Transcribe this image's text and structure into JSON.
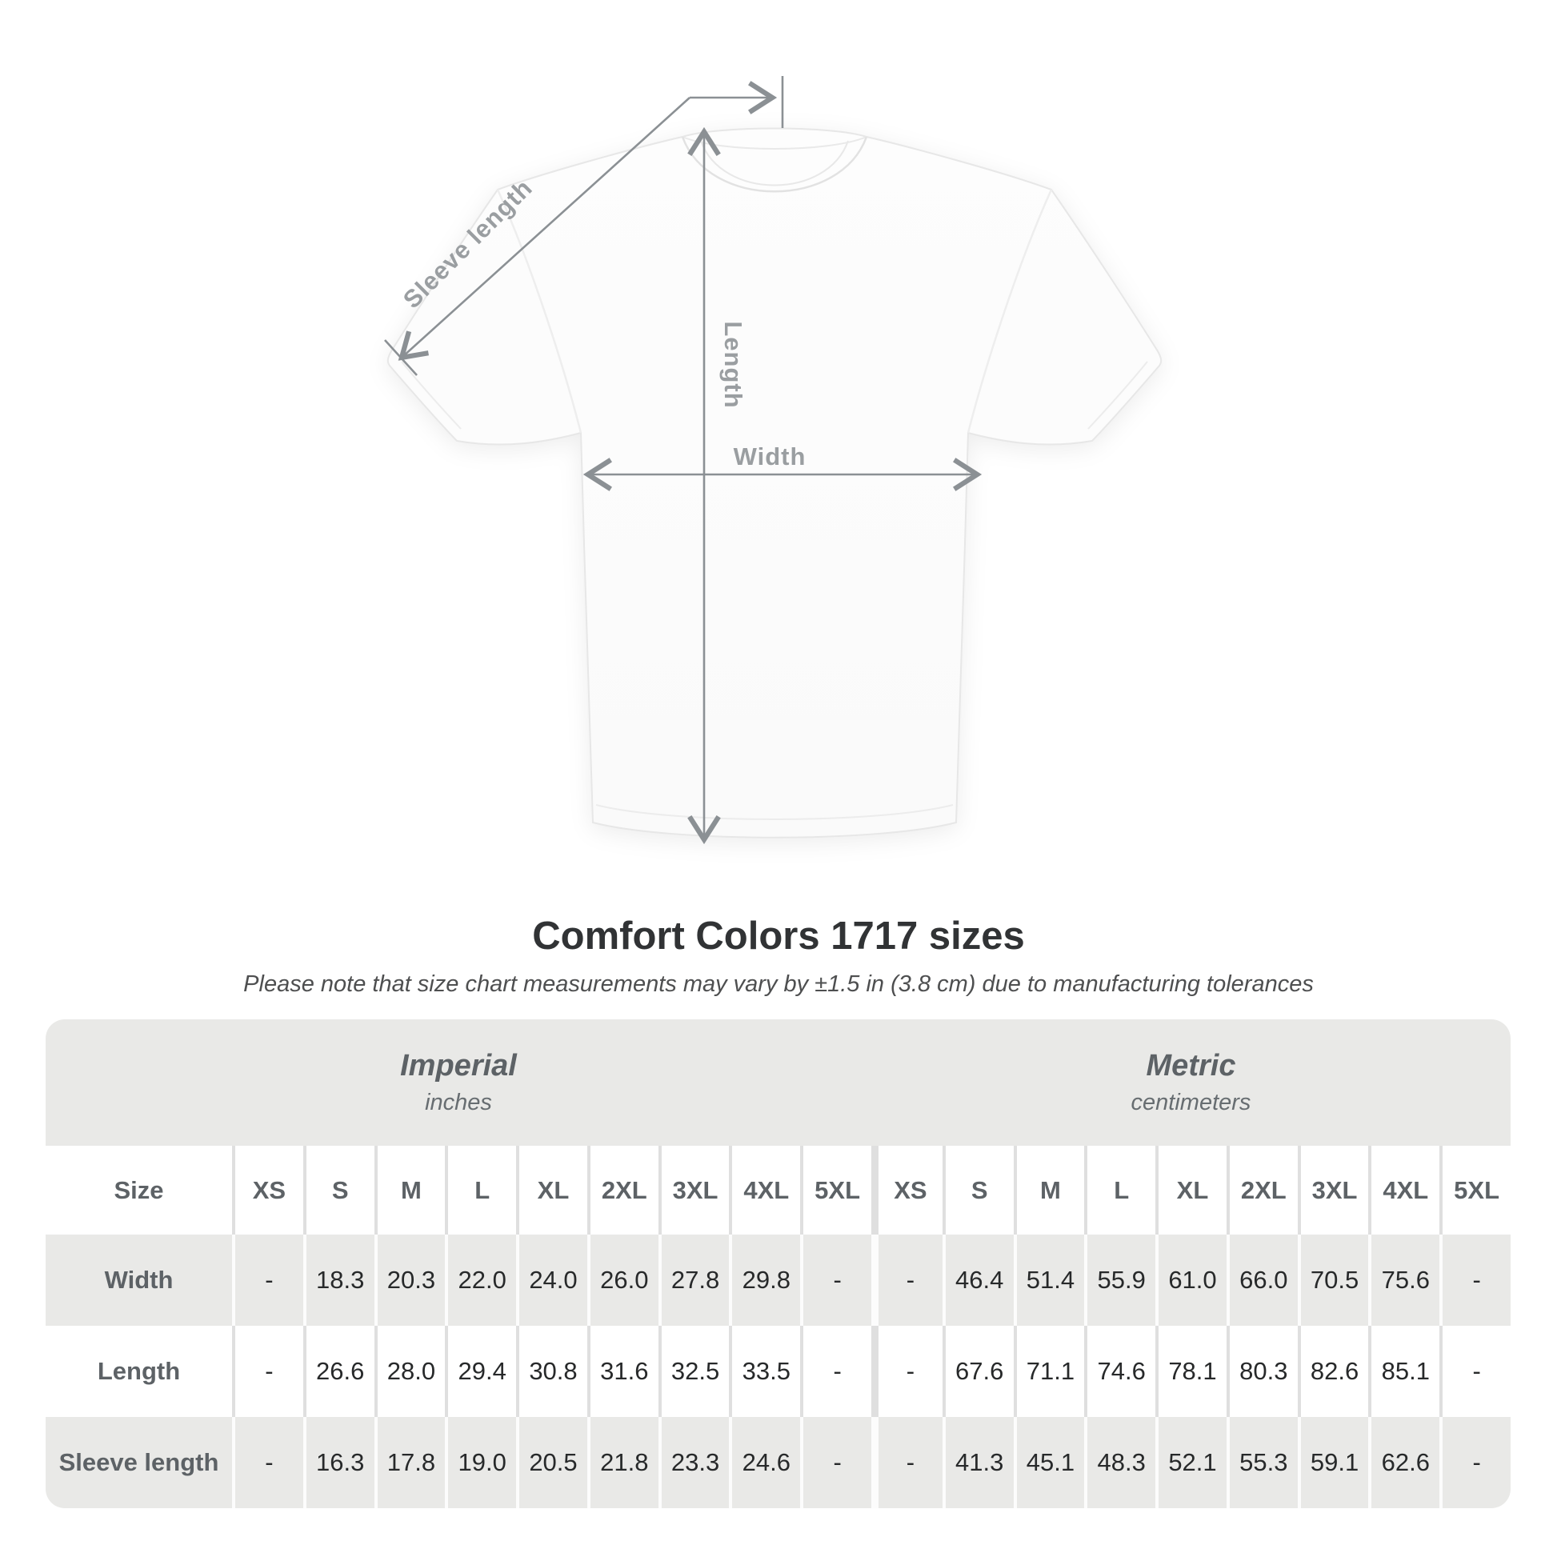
{
  "diagram": {
    "labels": {
      "sleeve_length": "Sleeve length",
      "length": "Length",
      "width": "Width"
    }
  },
  "colors": {
    "table_shade": "#e9e9e7",
    "annotation_line": "#8b9094",
    "annotation_text": "#9a9ea1",
    "title_text": "#313335"
  },
  "chart_data": {
    "type": "table",
    "title": "Comfort Colors 1717 sizes",
    "subtitle": "Please note that size chart measurements may vary by ±1.5 in (3.8 cm) due to manufacturing tolerances",
    "corner_header": "Size",
    "row_labels": [
      "Width",
      "Length",
      "Sleeve length"
    ],
    "sections": [
      {
        "group": "Imperial",
        "unit": "inches",
        "columns": [
          "XS",
          "S",
          "M",
          "L",
          "XL",
          "2XL",
          "3XL",
          "4XL",
          "5XL"
        ],
        "rows": [
          [
            "-",
            "18.3",
            "20.3",
            "22.0",
            "24.0",
            "26.0",
            "27.8",
            "29.8",
            "-"
          ],
          [
            "-",
            "26.6",
            "28.0",
            "29.4",
            "30.8",
            "31.6",
            "32.5",
            "33.5",
            "-"
          ],
          [
            "-",
            "16.3",
            "17.8",
            "19.0",
            "20.5",
            "21.8",
            "23.3",
            "24.6",
            "-"
          ]
        ]
      },
      {
        "group": "Metric",
        "unit": "centimeters",
        "columns": [
          "XS",
          "S",
          "M",
          "L",
          "XL",
          "2XL",
          "3XL",
          "4XL",
          "5XL"
        ],
        "rows": [
          [
            "-",
            "46.4",
            "51.4",
            "55.9",
            "61.0",
            "66.0",
            "70.5",
            "75.6",
            "-"
          ],
          [
            "-",
            "67.6",
            "71.1",
            "74.6",
            "78.1",
            "80.3",
            "82.6",
            "85.1",
            "-"
          ],
          [
            "-",
            "41.3",
            "45.1",
            "48.3",
            "52.1",
            "55.3",
            "59.1",
            "62.6",
            "-"
          ]
        ]
      }
    ]
  }
}
